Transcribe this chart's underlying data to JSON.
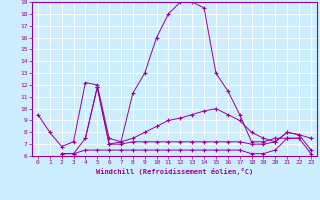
{
  "xlabel": "Windchill (Refroidissement éolien,°C)",
  "bg_color": "#cceeff",
  "line_color": "#990099",
  "grid_color": "#ffffff",
  "xlim": [
    -0.5,
    23.5
  ],
  "ylim": [
    6,
    19
  ],
  "xticks": [
    0,
    1,
    2,
    3,
    4,
    5,
    6,
    7,
    8,
    9,
    10,
    11,
    12,
    13,
    14,
    15,
    16,
    17,
    18,
    19,
    20,
    21,
    22,
    23
  ],
  "yticks": [
    6,
    7,
    8,
    9,
    10,
    11,
    12,
    13,
    14,
    15,
    16,
    17,
    18,
    19
  ],
  "series": [
    {
      "x": [
        0,
        1,
        2,
        3,
        4,
        5,
        6,
        7,
        8,
        9,
        10,
        11,
        12,
        13,
        14,
        15,
        16,
        17,
        18,
        19,
        20,
        21,
        22
      ],
      "y": [
        9.5,
        8.0,
        6.8,
        7.2,
        12.2,
        12.0,
        7.5,
        7.2,
        11.3,
        13.0,
        16.0,
        18.0,
        19.0,
        19.0,
        18.5,
        13.0,
        11.5,
        9.5,
        7.2,
        7.2,
        7.5,
        7.5,
        7.5
      ]
    },
    {
      "x": [
        0,
        1,
        2,
        3,
        4,
        5,
        6,
        7,
        8,
        9,
        10,
        11,
        12,
        13,
        14,
        15,
        16,
        17,
        18,
        19,
        20,
        21,
        22,
        23
      ],
      "y": [
        null,
        null,
        null,
        null,
        7.5,
        11.8,
        7.0,
        7.2,
        7.5,
        8.0,
        8.5,
        9.0,
        9.2,
        9.5,
        9.8,
        10.0,
        9.5,
        9.0,
        8.0,
        7.5,
        7.2,
        8.0,
        7.8,
        7.5
      ]
    },
    {
      "x": [
        0,
        1,
        2,
        3,
        4,
        5,
        6,
        7,
        8,
        9,
        10,
        11,
        12,
        13,
        14,
        15,
        16,
        17,
        18,
        19,
        20,
        21,
        22,
        23
      ],
      "y": [
        null,
        null,
        6.2,
        6.2,
        7.5,
        11.8,
        7.0,
        7.0,
        7.2,
        7.2,
        7.2,
        7.2,
        7.2,
        7.2,
        7.2,
        7.2,
        7.2,
        7.2,
        7.0,
        7.0,
        7.2,
        8.0,
        7.8,
        6.5
      ]
    },
    {
      "x": [
        2,
        3,
        4,
        5,
        6,
        7,
        8,
        9,
        10,
        11,
        12,
        13,
        14,
        15,
        16,
        17,
        18,
        19,
        20,
        21,
        22,
        23
      ],
      "y": [
        6.2,
        6.2,
        6.5,
        6.5,
        6.5,
        6.5,
        6.5,
        6.5,
        6.5,
        6.5,
        6.5,
        6.5,
        6.5,
        6.5,
        6.5,
        6.5,
        6.2,
        6.2,
        6.5,
        7.5,
        7.5,
        6.2
      ]
    }
  ]
}
